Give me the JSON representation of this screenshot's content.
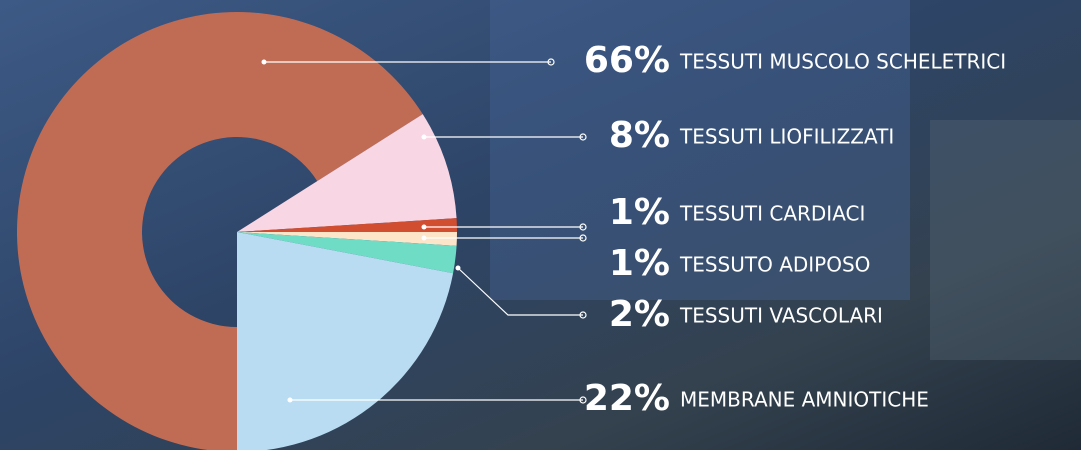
{
  "chart_data": {
    "type": "pie",
    "categories": [
      "TESSUTI MUSCOLO SCHELETRICI",
      "TESSUTI LIOFILIZZATI",
      "TESSUTI CARDIACI",
      "TESSUTO ADIPOSO",
      "TESSUTI VASCOLARI",
      "MEMBRANE AMNIOTICHE"
    ],
    "values": [
      66,
      8,
      1,
      1,
      2,
      22
    ],
    "value_labels": [
      "66%",
      "8%",
      "1%",
      "1%",
      "2%",
      "22%"
    ],
    "colors": [
      "#c06c55",
      "#f8d6e4",
      "#d24e30",
      "#fde5c9",
      "#6fdcc6",
      "#b9dcf3"
    ]
  }
}
